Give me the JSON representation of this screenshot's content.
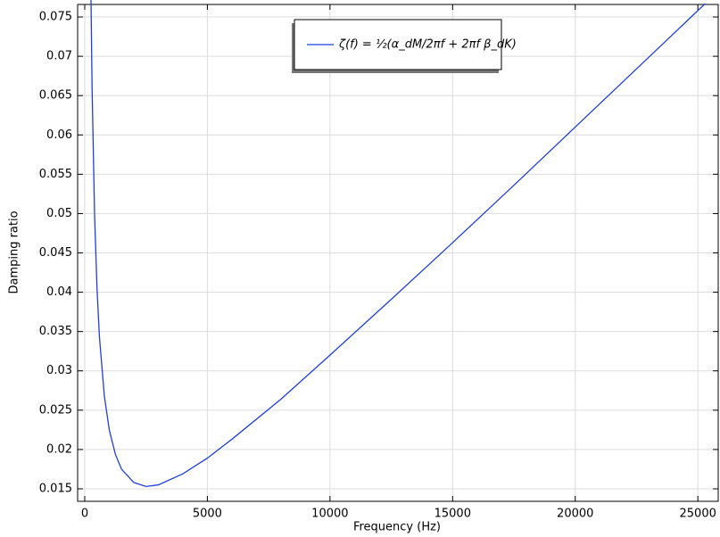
{
  "chart_data": {
    "type": "line",
    "x_label": "Frequency (Hz)",
    "y_label": "Damping ratio",
    "x": [
      253,
      300,
      400,
      500,
      600,
      800,
      1000,
      1250,
      1500,
      2000,
      2500,
      3000,
      4000,
      5000,
      6000,
      8000,
      10000,
      12500,
      15000,
      17500,
      20000,
      22500,
      25300
    ],
    "series": [
      {
        "name": "ζ(f) = ½(α_dM/2πf + 2πf β_dK)",
        "color": "#1f3fdc",
        "values": [
          0.0778,
          0.0659,
          0.05,
          0.0405,
          0.0343,
          0.0268,
          0.0225,
          0.0194,
          0.0175,
          0.0158,
          0.0153,
          0.0155,
          0.0169,
          0.0189,
          0.0213,
          0.0264,
          0.032,
          0.0391,
          0.0463,
          0.0536,
          0.061,
          0.0684,
          0.0767
        ]
      }
    ],
    "xlim": [
      -290,
      25830
    ],
    "ylim": [
      0.01341,
      0.07659
    ],
    "xticks": [
      0,
      5000,
      10000,
      15000,
      20000,
      25000
    ],
    "yticks": [
      0.015,
      0.02,
      0.025,
      0.03,
      0.035,
      0.04,
      0.045,
      0.05,
      0.055,
      0.06,
      0.065,
      0.07,
      0.075
    ],
    "grid": true,
    "legend": "top center"
  }
}
